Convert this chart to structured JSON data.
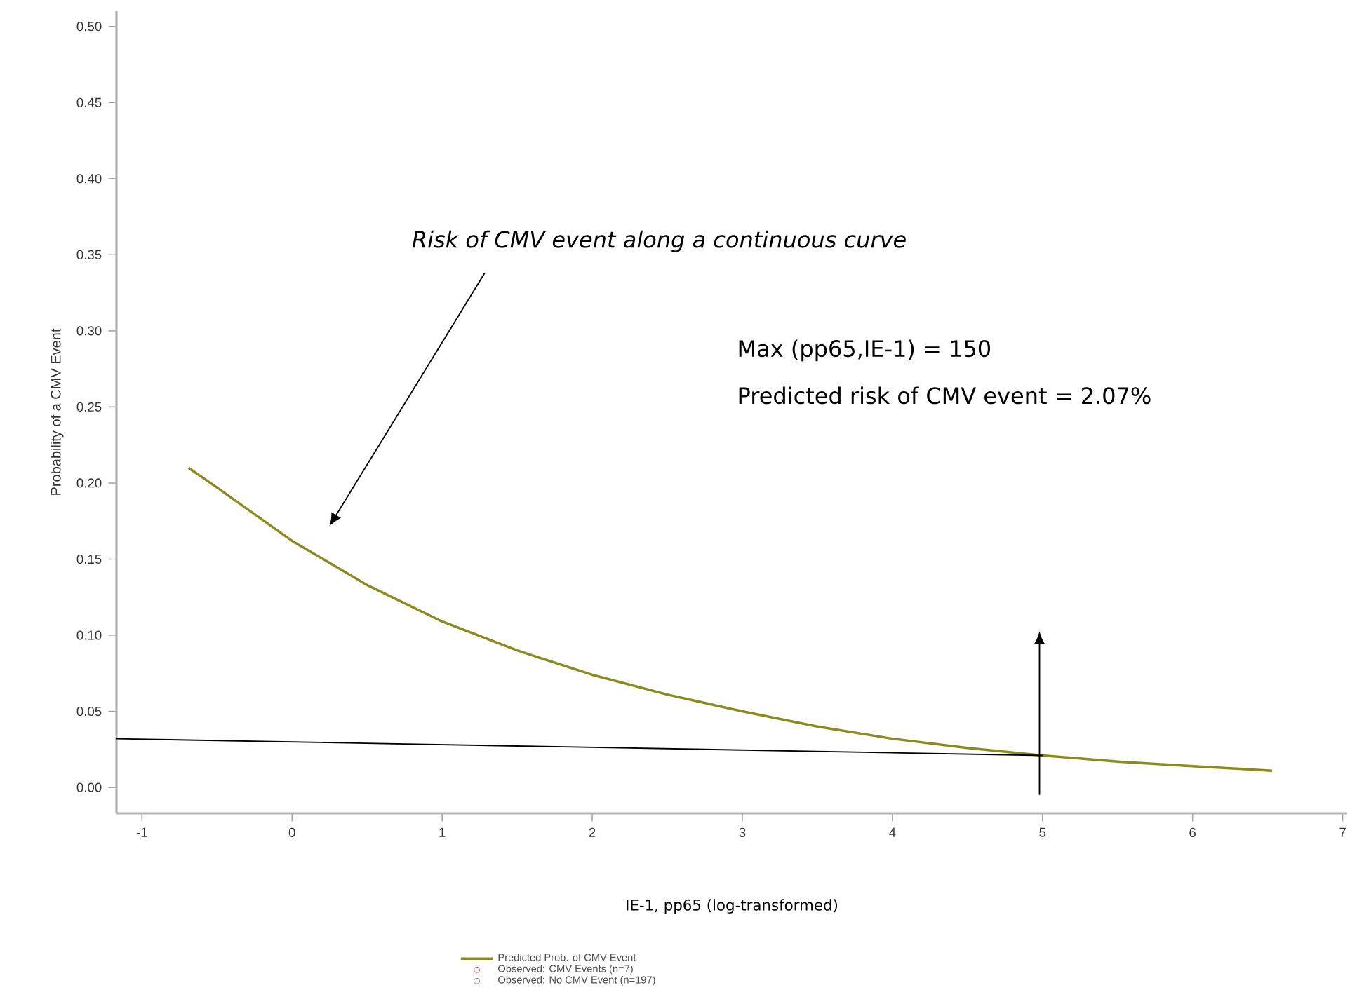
{
  "chart_data": {
    "type": "line",
    "xlabel": "IE-1, pp65 (log-transformed)",
    "ylabel": "Probability of a CMV Event",
    "xlim": [
      -1.17,
      7.03
    ],
    "ylim": [
      -0.017,
      0.51
    ],
    "xticks": [
      -1,
      0,
      1,
      2,
      3,
      4,
      5,
      6,
      7
    ],
    "yticks": [
      {
        "value": 0,
        "label": "0.00"
      },
      {
        "value": 0.05,
        "label": "0.05"
      },
      {
        "value": 0.1,
        "label": "0.10"
      },
      {
        "value": 0.15,
        "label": "0.15"
      },
      {
        "value": 0.2,
        "label": "0.20"
      },
      {
        "value": 0.25,
        "label": "0.25"
      },
      {
        "value": 0.3,
        "label": "0.30"
      },
      {
        "value": 0.35,
        "label": "0.35"
      },
      {
        "value": 0.4,
        "label": "0.40"
      },
      {
        "value": 0.45,
        "label": "0.45"
      },
      {
        "value": 0.5,
        "label": "0.50"
      }
    ],
    "legend": "bottom",
    "series": [
      {
        "name": "Predicted Prob. of CMV Event",
        "color": "#8a8a1e",
        "marker": "none",
        "x": [
          -0.69,
          -0.5,
          0,
          0.5,
          1,
          1.5,
          2,
          2.5,
          3,
          3.5,
          4,
          4.5,
          5,
          5.5,
          6,
          6.53
        ],
        "values": [
          0.21,
          0.197,
          0.162,
          0.133,
          0.109,
          0.09,
          0.074,
          0.061,
          0.05,
          0.04,
          0.032,
          0.026,
          0.021,
          0.017,
          0.014,
          0.011
        ]
      },
      {
        "name": "Observed: CMV Events (n=7)",
        "type": "scatter",
        "color": "#e06060",
        "marker": "circle"
      },
      {
        "name": "Observed: No CMV Event (n=197)",
        "type": "scatter",
        "color": "#909090",
        "marker": "circle"
      },
      {
        "color": "#000000",
        "marker": "none",
        "x": [
          -1.17,
          5
        ],
        "values": [
          0.032,
          0.021
        ]
      }
    ],
    "annotations": [
      "Risk of CMV event along a continuous curve",
      "Max (pp65,IE-1) = 150",
      "Predicted risk of CMV event = 2.07%"
    ]
  }
}
